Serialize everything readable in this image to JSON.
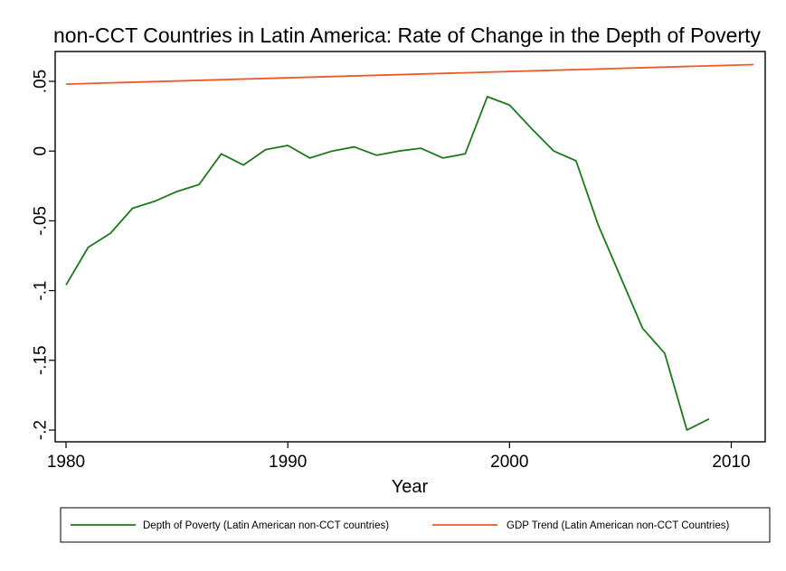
{
  "chart_data": {
    "type": "line",
    "title": "non-CCT Countries in Latin America: Rate of Change in the Depth of Poverty",
    "xlabel": "Year",
    "ylabel": "",
    "xlim": [
      1980,
      2011
    ],
    "ylim": [
      -0.2,
      0.05
    ],
    "xticks": [
      {
        "value": 1980,
        "label": "1980"
      },
      {
        "value": 1990,
        "label": "1990"
      },
      {
        "value": 2000,
        "label": "2000"
      },
      {
        "value": 2010,
        "label": "2010"
      }
    ],
    "yticks": [
      {
        "value": 0.05,
        "label": ".05"
      },
      {
        "value": 0,
        "label": "0"
      },
      {
        "value": -0.05,
        "label": "-.05"
      },
      {
        "value": -0.1,
        "label": "-.1"
      },
      {
        "value": -0.15,
        "label": "-.15"
      },
      {
        "value": -0.2,
        "label": "-.2"
      }
    ],
    "grid": false,
    "legend_position": "bottom",
    "series": [
      {
        "name": "Depth of Poverty (Latin American non-CCT countries)",
        "color": "#1a7a1a",
        "x": [
          1980,
          1981,
          1982,
          1983,
          1984,
          1985,
          1986,
          1987,
          1988,
          1989,
          1990,
          1991,
          1992,
          1993,
          1994,
          1995,
          1996,
          1997,
          1998,
          1999,
          2000,
          2001,
          2002,
          2003,
          2004,
          2005,
          2006,
          2007,
          2008,
          2009
        ],
        "y": [
          -0.096,
          -0.069,
          -0.059,
          -0.041,
          -0.036,
          -0.029,
          -0.024,
          -0.002,
          -0.01,
          0.001,
          0.004,
          -0.005,
          0.0,
          0.003,
          -0.003,
          0.0,
          0.002,
          -0.005,
          -0.002,
          0.039,
          0.033,
          0.016,
          0.0,
          -0.007,
          -0.053,
          -0.09,
          -0.127,
          -0.145,
          -0.2,
          -0.192
        ]
      },
      {
        "name": "GDP Trend (Latin American non-CCT Countries)",
        "color": "#f05a28",
        "x": [
          1980,
          2011
        ],
        "y": [
          0.048,
          0.062
        ]
      }
    ]
  }
}
